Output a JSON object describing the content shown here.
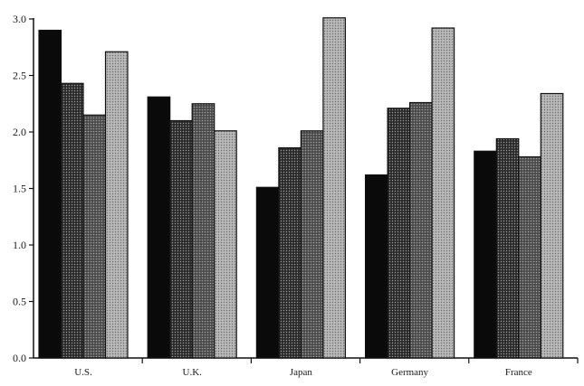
{
  "chart_data": {
    "type": "bar",
    "title": "",
    "xlabel": "",
    "ylabel": "",
    "categories": [
      "U.S.",
      "U.K.",
      "Japan",
      "Germany",
      "France"
    ],
    "ylim": [
      0,
      3.0
    ],
    "yticks": [
      "0.0",
      "0.5",
      "1.0",
      "1.5",
      "2.0",
      "2.5",
      "3.0"
    ],
    "grid": false,
    "legend": "none",
    "series": [
      {
        "values": [
          2.9,
          2.31,
          1.51,
          1.62,
          1.83
        ],
        "color": "#0a0a0a",
        "pattern": "solid"
      },
      {
        "values": [
          2.43,
          2.1,
          1.86,
          2.21,
          1.94
        ],
        "color": "#3a3a3a",
        "pattern": "dense-dots"
      },
      {
        "values": [
          2.15,
          2.25,
          2.01,
          2.26,
          1.78
        ],
        "color": "#5a5a5a",
        "pattern": "medium-dots"
      },
      {
        "values": [
          2.71,
          2.01,
          3.01,
          2.92,
          2.34
        ],
        "color": "#a8a8a8",
        "pattern": "light-dots"
      }
    ]
  }
}
